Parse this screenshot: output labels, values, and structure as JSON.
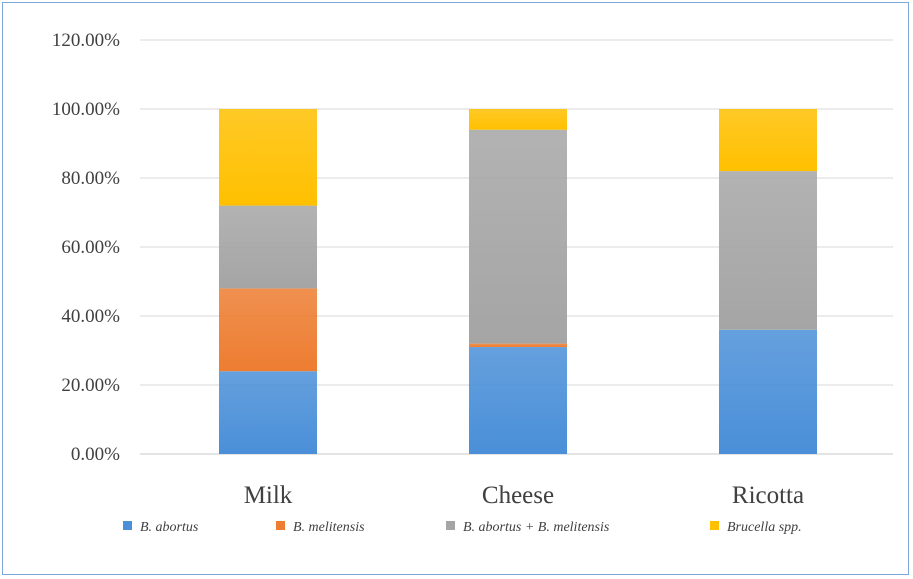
{
  "chart_data": {
    "type": "bar",
    "stacked": true,
    "categories": [
      "Milk",
      "Cheese",
      "Ricotta"
    ],
    "series": [
      {
        "name": "B. abortus",
        "color": "#4a8fd8",
        "values": [
          24,
          31,
          36
        ]
      },
      {
        "name": "B. melitensis",
        "color": "#ed7d31",
        "values": [
          24,
          1,
          0
        ]
      },
      {
        "name": "B. abortus + B. melitensis",
        "color": "#a5a5a5",
        "values": [
          24,
          62,
          46
        ]
      },
      {
        "name": "Brucella spp.",
        "color": "#ffc000",
        "values": [
          28,
          6,
          18
        ]
      }
    ],
    "y_ticks": [
      "0.00%",
      "20.00%",
      "40.00%",
      "60.00%",
      "80.00%",
      "100.00%",
      "120.00%"
    ],
    "ylim": [
      0,
      120
    ],
    "grid": true,
    "legend": "bottom"
  }
}
